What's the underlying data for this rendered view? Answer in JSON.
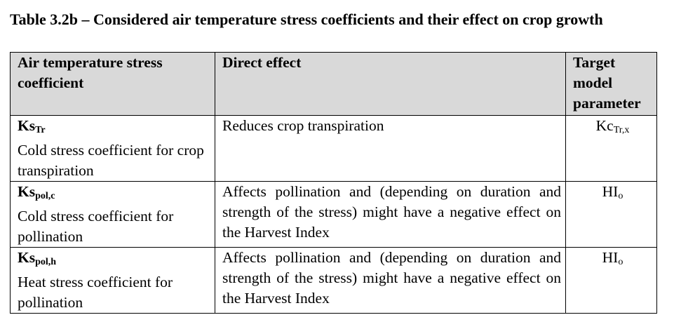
{
  "caption": "Table 3.2b – Considered air temperature stress coefficients and their effect on crop growth",
  "table": {
    "headers": {
      "coefficient": "Air temperature stress coefficient",
      "effect": "Direct effect",
      "target": "Target model parameter"
    },
    "header_bg": "#d9d9d9",
    "rows": [
      {
        "symbol_main": "Ks",
        "symbol_sub": "Tr",
        "description": "Cold stress coefficient for crop transpiration",
        "effect": "Reduces crop transpiration",
        "target_main": "Kc",
        "target_sub": "Tr,x"
      },
      {
        "symbol_main": "Ks",
        "symbol_sub": "pol,c",
        "description": "Cold stress coefficient for pollination",
        "effect": "Affects pollination and (depending on duration and strength of the stress) might have a negative effect on the Harvest Index",
        "target_main": "HI",
        "target_sub": "o"
      },
      {
        "symbol_main": "Ks",
        "symbol_sub": "pol,h",
        "description": "Heat stress coefficient for pollination",
        "effect": "Affects pollination and (depending on duration and strength of the stress) might have a negative effect on the Harvest Index",
        "target_main": "HI",
        "target_sub": "o"
      }
    ]
  }
}
